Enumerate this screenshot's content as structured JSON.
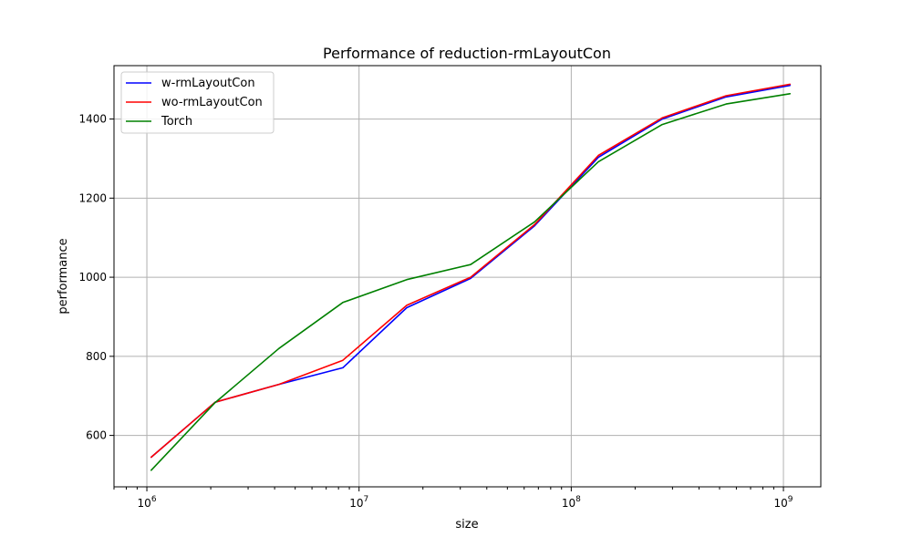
{
  "chart_data": {
    "type": "line",
    "title": "Performance of reduction-rmLayoutCon",
    "xlabel": "size",
    "ylabel": "performance",
    "xscale": "log",
    "xlim": [
      700000,
      1500000000
    ],
    "ylim": [
      470,
      1535
    ],
    "x_ticks": [
      {
        "value": 1000000,
        "base": "10",
        "exp": "6"
      },
      {
        "value": 10000000,
        "base": "10",
        "exp": "7"
      },
      {
        "value": 100000000,
        "base": "10",
        "exp": "8"
      },
      {
        "value": 1000000000,
        "base": "10",
        "exp": "9"
      }
    ],
    "y_ticks": [
      600,
      800,
      1000,
      1200,
      1400
    ],
    "grid": true,
    "legend_position": "top-left",
    "x": [
      1048576,
      2097152,
      4194304,
      8388608,
      16777216,
      33554432,
      67108864,
      134217728,
      268435456,
      536870912,
      1073741824
    ],
    "series": [
      {
        "name": "w-rmLayoutCon",
        "color": "#0000ff",
        "values": [
          545,
          684,
          729,
          771,
          923,
          997,
          1130,
          1303,
          1400,
          1456,
          1485
        ]
      },
      {
        "name": "wo-rmLayoutCon",
        "color": "#ff0000",
        "values": [
          545,
          684,
          729,
          790,
          929,
          1000,
          1133,
          1308,
          1403,
          1459,
          1488
        ]
      },
      {
        "name": "Torch",
        "color": "#008000",
        "values": [
          512,
          683,
          820,
          936,
          994,
          1032,
          1140,
          1292,
          1386,
          1438,
          1464
        ]
      }
    ]
  }
}
